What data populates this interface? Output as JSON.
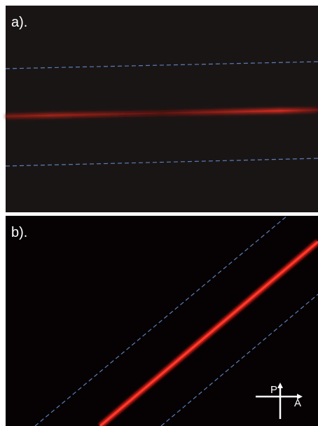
{
  "panel_a": {
    "label": "a)."
  },
  "panel_b": {
    "label": "b)."
  },
  "polarizer": {
    "p_label": "P",
    "a_label": "A"
  }
}
